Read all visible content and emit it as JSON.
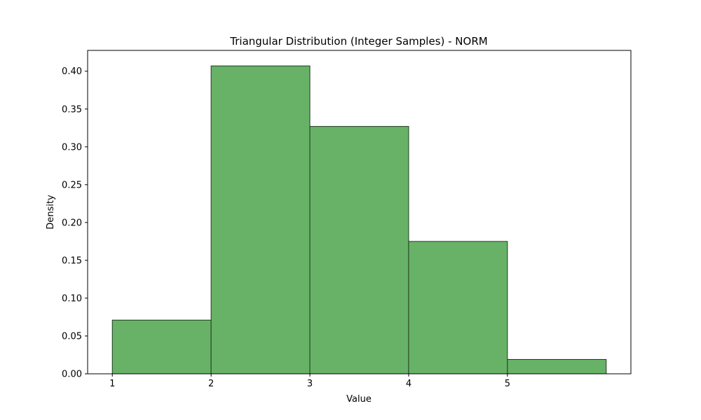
{
  "chart_data": {
    "type": "bar",
    "title": "Triangular Distribution (Integer Samples) - NORM",
    "xlabel": "Value",
    "ylabel": "Density",
    "bins": [
      {
        "start": 1,
        "end": 2,
        "value": 0.071
      },
      {
        "start": 2,
        "end": 3,
        "value": 0.407
      },
      {
        "start": 3,
        "end": 4,
        "value": 0.327
      },
      {
        "start": 4,
        "end": 5,
        "value": 0.175
      },
      {
        "start": 5,
        "end": 6,
        "value": 0.019
      }
    ],
    "xlim": [
      0.75,
      6.25
    ],
    "ylim": [
      0,
      0.4275
    ],
    "xticks": [
      1,
      2,
      3,
      4,
      5
    ],
    "yticks": [
      0.0,
      0.05,
      0.1,
      0.15,
      0.2,
      0.25,
      0.3,
      0.35,
      0.4
    ],
    "ytick_labels": [
      "0.00",
      "0.05",
      "0.10",
      "0.15",
      "0.20",
      "0.25",
      "0.30",
      "0.35",
      "0.40"
    ],
    "xtick_labels": [
      "1",
      "2",
      "3",
      "4",
      "5"
    ],
    "grid": false,
    "colors": {
      "bar_fill": "#67b267",
      "bar_edge": "#1f3a1f"
    }
  }
}
